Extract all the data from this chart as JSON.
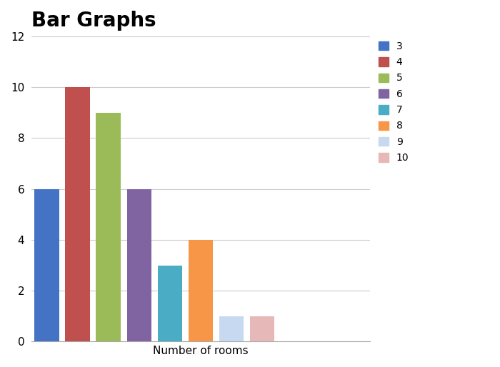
{
  "title": "Bar Graphs",
  "xlabel": "Number of rooms",
  "ylabel": "",
  "categories": [
    3,
    4,
    5,
    6,
    7,
    8,
    9,
    10
  ],
  "values": [
    6,
    10,
    9,
    6,
    3,
    4,
    1,
    1
  ],
  "colors": [
    "#4472C4",
    "#C0504D",
    "#9BBB59",
    "#8064A2",
    "#4BACC6",
    "#F79646",
    "#C6D9F1",
    "#E6B9B8"
  ],
  "ylim": [
    0,
    12
  ],
  "yticks": [
    0,
    2,
    4,
    6,
    8,
    10,
    12
  ],
  "title_fontsize": 20,
  "label_fontsize": 11,
  "tick_fontsize": 11,
  "legend_fontsize": 10,
  "bar_width": 0.8,
  "background_color": "#FFFFFF"
}
